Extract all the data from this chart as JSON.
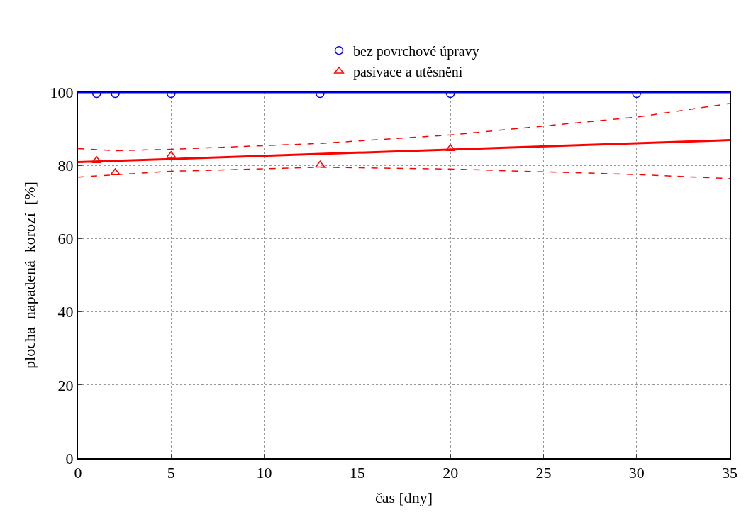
{
  "chart_data": {
    "type": "scatter",
    "xlabel": "čas [dny]",
    "ylabel": "plocha  napadená  korozí  [%]",
    "xlim": [
      0,
      35
    ],
    "xticks": [
      0,
      5,
      10,
      15,
      20,
      25,
      30,
      35
    ],
    "ylim": [
      0,
      100
    ],
    "yticks": [
      0,
      20,
      40,
      60,
      80,
      100
    ],
    "grid": true,
    "legend": "top",
    "series": [
      {
        "name": "bez povrchové úpravy",
        "color": "#0000ff",
        "marker": "circle",
        "x": [
          1,
          2,
          5,
          13,
          20,
          30
        ],
        "values": [
          99.6,
          99.6,
          99.6,
          99.6,
          99.6,
          99.6
        ]
      },
      {
        "name": "pasivace a utěsnění",
        "color": "#ff0000",
        "marker": "triangle",
        "x": [
          1,
          2,
          5,
          13,
          20
        ],
        "values": [
          81.3,
          78.0,
          82.7,
          80.1,
          84.6
        ]
      },
      {
        "type": "line",
        "color": "#0000ff",
        "line_style": "solid",
        "x": [
          0,
          35
        ],
        "values": [
          100,
          100
        ]
      },
      {
        "type": "line",
        "color": "#ff0000",
        "line_style": "solid",
        "x": [
          0,
          35
        ],
        "values": [
          80.9,
          86.9
        ]
      },
      {
        "type": "line",
        "color": "#ff0000",
        "line_style": "dashed",
        "x": [
          0,
          2,
          5,
          13,
          20,
          30,
          35
        ],
        "values": [
          84.6,
          84.0,
          84.4,
          86.0,
          88.3,
          93.2,
          96.9
        ]
      },
      {
        "type": "line",
        "color": "#ff0000",
        "line_style": "dashed",
        "x": [
          0,
          5,
          13,
          20,
          30,
          35
        ],
        "values": [
          76.8,
          78.4,
          79.5,
          79.0,
          77.5,
          76.4
        ]
      }
    ]
  }
}
